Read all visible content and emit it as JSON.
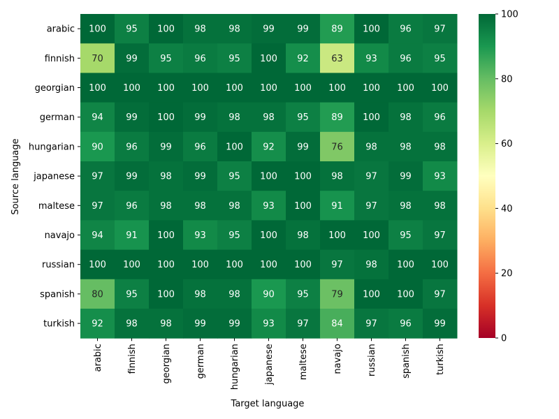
{
  "chart_data": {
    "type": "heatmap",
    "xlabel": "Target language",
    "ylabel": "Source language",
    "x_categories": [
      "arabic",
      "finnish",
      "georgian",
      "german",
      "hungarian",
      "japanese",
      "maltese",
      "navajo",
      "russian",
      "spanish",
      "turkish"
    ],
    "y_categories": [
      "arabic",
      "finnish",
      "georgian",
      "german",
      "hungarian",
      "japanese",
      "maltese",
      "navajo",
      "russian",
      "spanish",
      "turkish"
    ],
    "values": [
      [
        100,
        95,
        100,
        98,
        98,
        99,
        99,
        89,
        100,
        96,
        97
      ],
      [
        70,
        99,
        95,
        96,
        95,
        100,
        92,
        63,
        93,
        96,
        95
      ],
      [
        100,
        100,
        100,
        100,
        100,
        100,
        100,
        100,
        100,
        100,
        100
      ],
      [
        94,
        99,
        100,
        99,
        98,
        98,
        95,
        89,
        100,
        98,
        96
      ],
      [
        90,
        96,
        99,
        96,
        100,
        92,
        99,
        76,
        98,
        98,
        98
      ],
      [
        97,
        99,
        98,
        99,
        95,
        100,
        100,
        98,
        97,
        99,
        93
      ],
      [
        97,
        96,
        98,
        98,
        98,
        93,
        100,
        91,
        97,
        98,
        98
      ],
      [
        94,
        91,
        100,
        93,
        95,
        100,
        98,
        100,
        100,
        95,
        97
      ],
      [
        100,
        100,
        100,
        100,
        100,
        100,
        100,
        97,
        98,
        100,
        100
      ],
      [
        80,
        95,
        100,
        98,
        98,
        90,
        95,
        79,
        100,
        100,
        97
      ],
      [
        92,
        98,
        98,
        99,
        99,
        93,
        97,
        84,
        97,
        96,
        99
      ]
    ],
    "colorbar": {
      "min": 0,
      "max": 100,
      "ticks": [
        0,
        20,
        40,
        60,
        80,
        100
      ],
      "colormap": "RdYlGn"
    },
    "annotations": true,
    "grid": false
  }
}
